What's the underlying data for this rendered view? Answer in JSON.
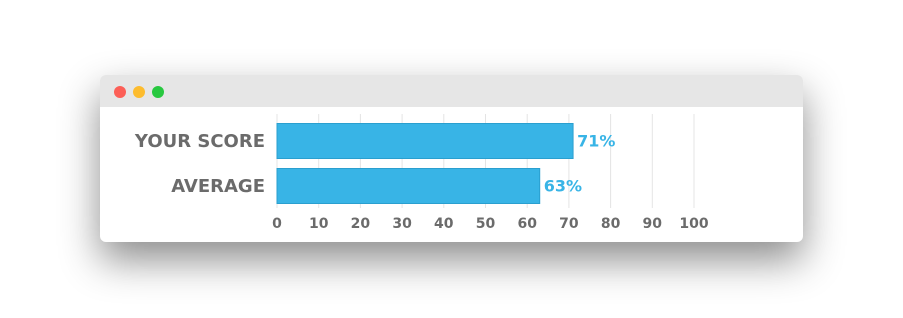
{
  "chart_data": {
    "type": "bar",
    "orientation": "horizontal",
    "categories": [
      "YOUR SCORE",
      "AVERAGE"
    ],
    "values": [
      71,
      63
    ],
    "value_labels": [
      "71%",
      "63%"
    ],
    "color": "#38b4e6",
    "xlim": [
      0,
      100
    ],
    "xticks": [
      0,
      10,
      20,
      30,
      40,
      50,
      60,
      70,
      80,
      90,
      100
    ],
    "grid": true
  }
}
